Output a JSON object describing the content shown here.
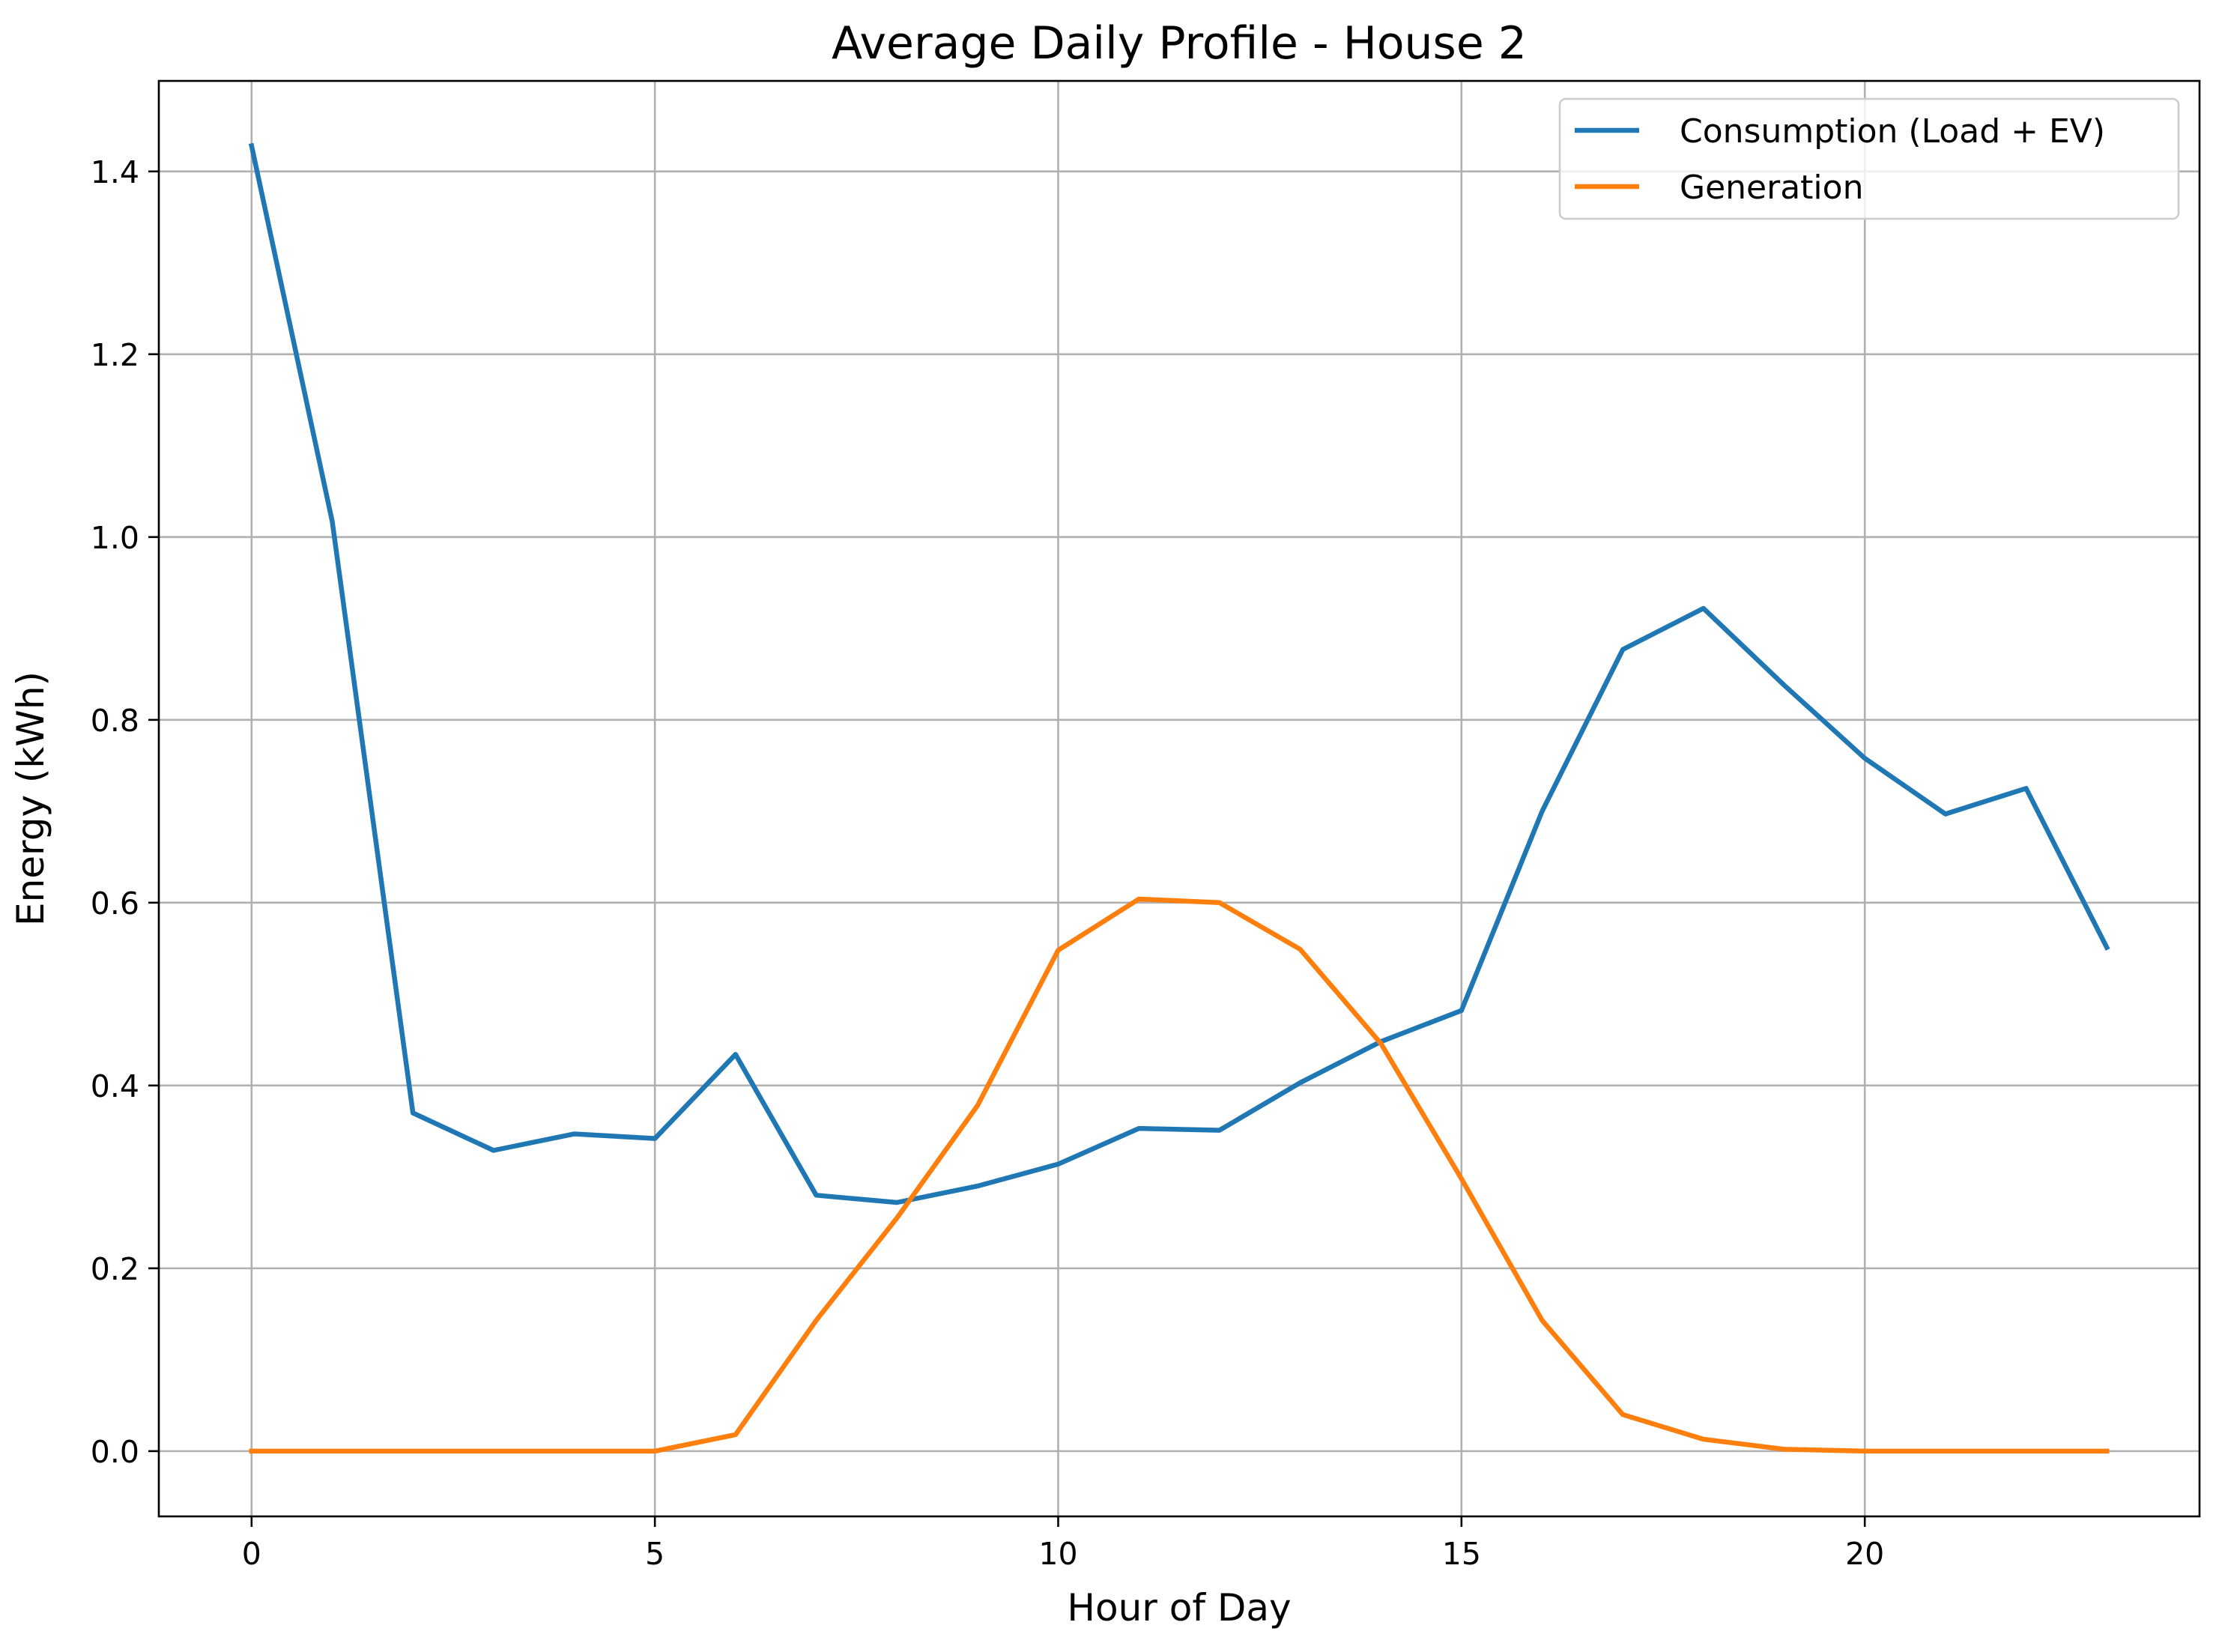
{
  "chart_data": {
    "type": "line",
    "title": "Average Daily Profile - House 2",
    "xlabel": "Hour of Day",
    "ylabel": "Energy (kWh)",
    "xlim": [
      -1.15,
      24.15
    ],
    "ylim": [
      -0.0714,
      1.499
    ],
    "grid": true,
    "legend_position": "top-right",
    "x": [
      0,
      1,
      2,
      3,
      4,
      5,
      6,
      7,
      8,
      9,
      10,
      11,
      12,
      13,
      14,
      15,
      16,
      17,
      18,
      19,
      20,
      21,
      22,
      23
    ],
    "x_ticks": [
      0,
      5,
      10,
      15,
      20
    ],
    "x_tick_labels": [
      "0",
      "5",
      "10",
      "15",
      "20"
    ],
    "y_ticks": [
      0.0,
      0.2,
      0.4,
      0.6,
      0.8,
      1.0,
      1.2,
      1.4
    ],
    "y_tick_labels": [
      "0.0",
      "0.2",
      "0.4",
      "0.6",
      "0.8",
      "1.0",
      "1.2",
      "1.4"
    ],
    "series": [
      {
        "name": "Consumption (Load + EV)",
        "color": "#1f77b4",
        "values": [
          1.428,
          1.017,
          0.37,
          0.329,
          0.347,
          0.342,
          0.434,
          0.28,
          0.272,
          0.29,
          0.314,
          0.353,
          0.351,
          0.403,
          0.448,
          0.482,
          0.7,
          0.877,
          0.922,
          0.838,
          0.758,
          0.697,
          0.725,
          0.551
        ]
      },
      {
        "name": "Generation",
        "color": "#ff7f0e",
        "values": [
          0.0,
          0.0,
          0.0,
          0.0,
          0.0,
          0.0,
          0.018,
          0.143,
          0.255,
          0.378,
          0.548,
          0.604,
          0.6,
          0.549,
          0.446,
          0.298,
          0.143,
          0.04,
          0.013,
          0.002,
          0.0,
          0.0,
          0.0,
          0.0
        ]
      }
    ]
  }
}
